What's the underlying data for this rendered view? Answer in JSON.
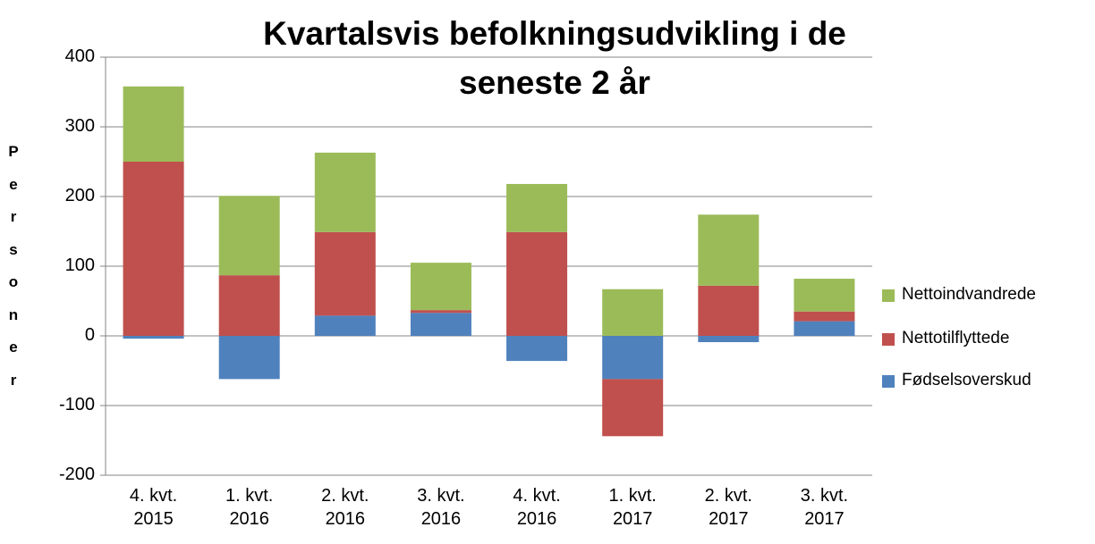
{
  "chart_data": {
    "type": "stacked_bar",
    "title": "Kvartalsvis befolkningsudvikling i de seneste 2 år",
    "y_label": "Personer",
    "categories": [
      "4. kvt. 2015",
      "1. kvt. 2016",
      "2. kvt. 2016",
      "3. kvt. 2016",
      "4. kvt. 2016",
      "1. kvt. 2017",
      "2. kvt. 2017",
      "3. kvt. 2017"
    ],
    "series": [
      {
        "name": "Fødselsoverskud",
        "color": "#4f81bd",
        "values": [
          -4,
          -62,
          29,
          33,
          -36,
          -62,
          -9,
          21
        ]
      },
      {
        "name": "Nettotilflyttede",
        "color": "#c0504d",
        "values": [
          250,
          87,
          120,
          4,
          149,
          -82,
          72,
          14
        ]
      },
      {
        "name": "Nettoindvandrede",
        "color": "#9bbb59",
        "values": [
          108,
          114,
          114,
          68,
          69,
          67,
          102,
          47
        ]
      }
    ],
    "ylim": [
      -200,
      400
    ],
    "yticks": [
      -200,
      -100,
      0,
      100,
      200,
      300,
      400
    ],
    "grid": true,
    "legend": "right"
  }
}
